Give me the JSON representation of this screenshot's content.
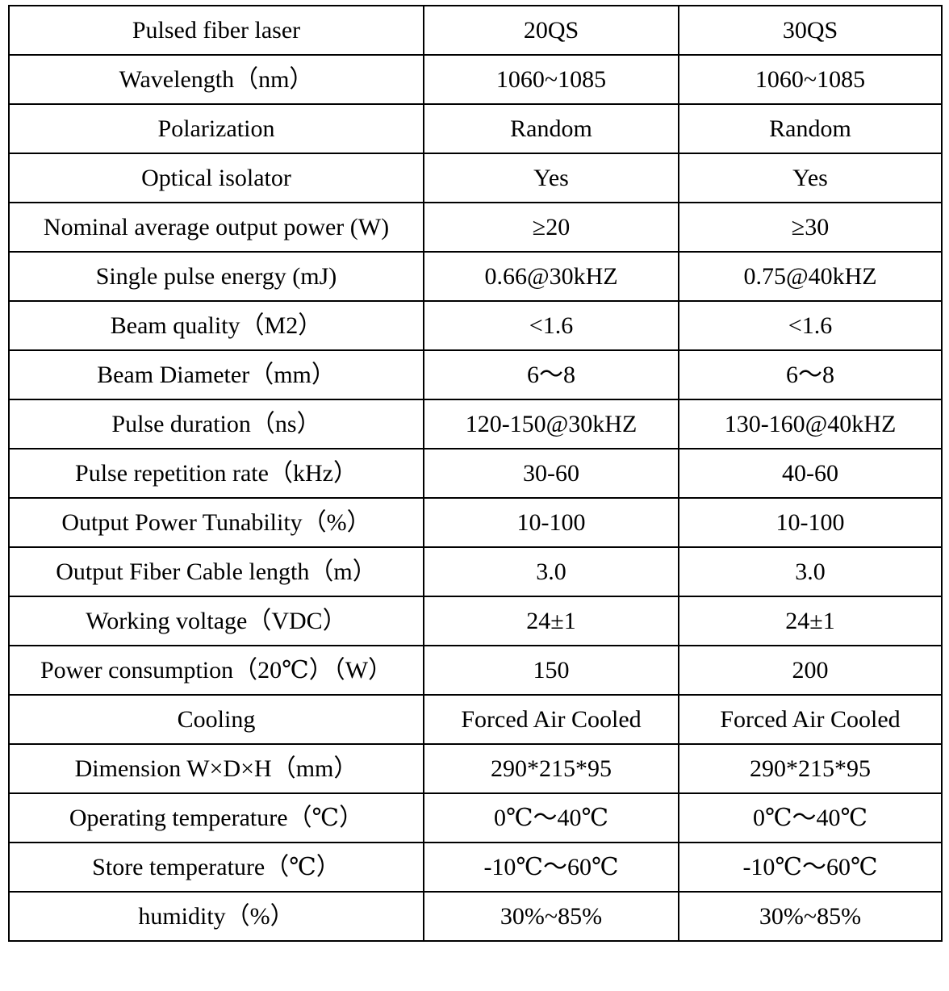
{
  "table": {
    "rows": [
      [
        "Pulsed fiber laser",
        "20QS",
        "30QS"
      ],
      [
        "Wavelength（nm）",
        "1060~1085",
        "1060~1085"
      ],
      [
        "Polarization",
        "Random",
        "Random"
      ],
      [
        "Optical isolator",
        "Yes",
        "Yes"
      ],
      [
        "Nominal average output power (W)",
        "≥20",
        "≥30"
      ],
      [
        "Single pulse energy (mJ)",
        "0.66@30kHZ",
        "0.75@40kHZ"
      ],
      [
        "Beam quality（M2）",
        "<1.6",
        "<1.6"
      ],
      [
        "Beam Diameter（mm）",
        "6～8",
        "6～8"
      ],
      [
        "Pulse duration（ns）",
        "120-150@30kHZ",
        "130-160@40kHZ"
      ],
      [
        "Pulse repetition rate（kHz）",
        "30-60",
        "40-60"
      ],
      [
        "Output Power Tunability（%）",
        "10-100",
        "10-100"
      ],
      [
        "Output Fiber Cable length（m）",
        "3.0",
        "3.0"
      ],
      [
        "Working voltage（VDC）",
        "24±1",
        "24±1"
      ],
      [
        "Power consumption（20℃）（W）",
        "150",
        "200"
      ],
      [
        "Cooling",
        "Forced Air Cooled",
        "Forced Air Cooled"
      ],
      [
        "Dimension W×D×H（mm）",
        "290*215*95",
        "290*215*95"
      ],
      [
        "Operating temperature（℃）",
        "0℃～40℃",
        "0℃～40℃"
      ],
      [
        "Store temperature（℃）",
        "-10℃～60℃",
        "-10℃～60℃"
      ],
      [
        "humidity（%）",
        "30%~85%",
        "30%~85%"
      ]
    ]
  }
}
